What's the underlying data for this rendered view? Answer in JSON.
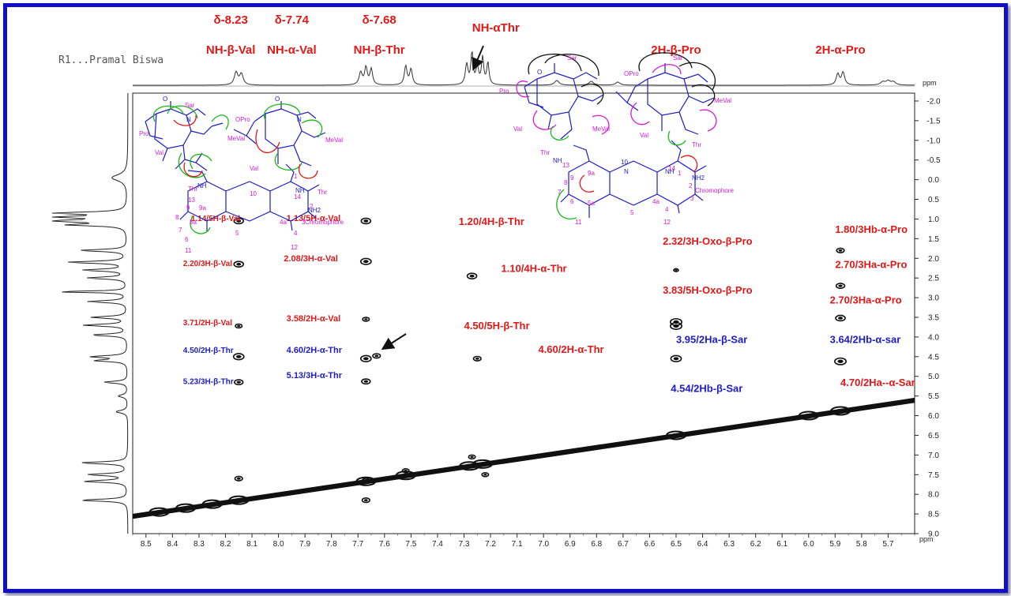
{
  "sample_label": "R1...Pramal Biswa",
  "colors": {
    "frame": "#1010c8",
    "red": "#e01818",
    "blue": "#1c1cc8",
    "magenta": "#d81ad8",
    "green": "#18b818",
    "ink": "#111111"
  },
  "top_labels": [
    {
      "key": "d823",
      "text": "δ-8.23",
      "ppm": 8.18,
      "row": 1
    },
    {
      "key": "d774",
      "text": "δ-7.74",
      "ppm": 7.95,
      "row": 1
    },
    {
      "key": "d768",
      "text": "δ-7.68",
      "ppm": 7.62,
      "row": 1
    },
    {
      "key": "nhbv",
      "text": "NH-β-Val",
      "ppm": 8.18,
      "row": 2
    },
    {
      "key": "nhav",
      "text": "NH-α-Val",
      "ppm": 7.95,
      "row": 2
    },
    {
      "key": "nhbt",
      "text": "NH-β-Thr",
      "ppm": 7.62,
      "row": 2
    },
    {
      "key": "nhat",
      "text": "NH-αThr",
      "ppm": 7.18,
      "row": 1.5
    },
    {
      "key": "bpro",
      "text": "2H-β-Pro",
      "ppm": 6.5,
      "row": 2
    },
    {
      "key": "apro",
      "text": "2H-α-Pro",
      "ppm": 5.88,
      "row": 2
    }
  ],
  "chart_data": {
    "type": "scatter",
    "title": "",
    "xlabel": "ppm",
    "ylabel": "ppm",
    "x_reversed": true,
    "xlim": [
      8.55,
      5.6
    ],
    "ylim": [
      -2.2,
      9.0
    ],
    "x_ticks": [
      8.5,
      8.4,
      8.3,
      8.2,
      8.1,
      8.0,
      7.9,
      7.8,
      7.7,
      7.6,
      7.5,
      7.4,
      7.3,
      7.2,
      7.1,
      7.0,
      6.9,
      6.8,
      6.7,
      6.6,
      6.5,
      6.4,
      6.3,
      6.2,
      6.1,
      6.0,
      5.9,
      5.8,
      5.7
    ],
    "y_ticks": [
      -2.0,
      -1.5,
      -1.0,
      -0.5,
      0.0,
      0.5,
      1.0,
      1.5,
      2.0,
      2.5,
      3.0,
      3.5,
      4.0,
      4.5,
      5.0,
      5.5,
      6.0,
      6.5,
      7.0,
      7.5,
      8.0,
      8.5,
      9.0
    ],
    "cross_peaks": [
      {
        "x": 8.15,
        "y": 1.05,
        "s": 1.0
      },
      {
        "x": 8.15,
        "y": 2.15,
        "s": 1.0
      },
      {
        "x": 8.15,
        "y": 3.72,
        "s": 0.7
      },
      {
        "x": 8.15,
        "y": 4.5,
        "s": 1.1
      },
      {
        "x": 8.15,
        "y": 5.15,
        "s": 0.9
      },
      {
        "x": 7.67,
        "y": 1.05,
        "s": 1.0
      },
      {
        "x": 7.67,
        "y": 2.08,
        "s": 1.1
      },
      {
        "x": 7.67,
        "y": 3.55,
        "s": 0.7
      },
      {
        "x": 7.67,
        "y": 4.55,
        "s": 1.1
      },
      {
        "x": 7.63,
        "y": 4.48,
        "s": 0.8
      },
      {
        "x": 7.67,
        "y": 5.13,
        "s": 0.9
      },
      {
        "x": 7.27,
        "y": 2.45,
        "s": 1.0
      },
      {
        "x": 7.25,
        "y": 4.55,
        "s": 0.8
      },
      {
        "x": 6.5,
        "y": 2.3,
        "s": 0.5
      },
      {
        "x": 6.5,
        "y": 3.62,
        "s": 1.2
      },
      {
        "x": 6.5,
        "y": 3.72,
        "s": 1.2
      },
      {
        "x": 6.5,
        "y": 4.55,
        "s": 1.1
      },
      {
        "x": 5.88,
        "y": 1.8,
        "s": 0.8
      },
      {
        "x": 5.88,
        "y": 2.7,
        "s": 0.9
      },
      {
        "x": 5.88,
        "y": 3.52,
        "s": 1.0
      },
      {
        "x": 5.88,
        "y": 4.62,
        "s": 1.2
      },
      {
        "x": 8.15,
        "y": 7.6,
        "s": 0.8
      },
      {
        "x": 7.67,
        "y": 7.65,
        "s": 0.8
      },
      {
        "x": 7.67,
        "y": 8.15,
        "s": 0.8
      },
      {
        "x": 7.27,
        "y": 7.05,
        "s": 0.7
      },
      {
        "x": 7.22,
        "y": 7.5,
        "s": 0.7
      },
      {
        "x": 7.52,
        "y": 7.4,
        "s": 0.7
      }
    ],
    "annotations": [
      {
        "text": "1.14/5H-β-Val",
        "ppm": 8.33,
        "y": 1.05,
        "color": "red",
        "size": 10
      },
      {
        "text": "1.13/5H-α-Val",
        "ppm": 7.97,
        "y": 1.05,
        "color": "red",
        "size": 11
      },
      {
        "text": "1.20/4H-β-Thr",
        "ppm": 7.32,
        "y": 1.15,
        "color": "red",
        "size": 13
      },
      {
        "text": "2.20/3H-β-Val",
        "ppm": 8.36,
        "y": 2.2,
        "color": "red",
        "size": 10
      },
      {
        "text": "2.08/3H-α-Val",
        "ppm": 7.98,
        "y": 2.08,
        "color": "red",
        "size": 11
      },
      {
        "text": "1.10/4H-α-Thr",
        "ppm": 7.16,
        "y": 2.35,
        "color": "red",
        "size": 13
      },
      {
        "text": "3.71/2H-β-Val",
        "ppm": 8.36,
        "y": 3.7,
        "color": "red",
        "size": 10
      },
      {
        "text": "3.58/2H-α-Val",
        "ppm": 7.97,
        "y": 3.6,
        "color": "red",
        "size": 11
      },
      {
        "text": "4.50/5H-β-Thr",
        "ppm": 7.3,
        "y": 3.8,
        "color": "red",
        "size": 13
      },
      {
        "text": "4.50/2H-β-Thr",
        "ppm": 8.36,
        "y": 4.4,
        "color": "blue",
        "size": 10
      },
      {
        "text": "4.60/2H-α-Thr",
        "ppm": 7.97,
        "y": 4.4,
        "color": "blue",
        "size": 11
      },
      {
        "text": "4.60/2H-α-Thr",
        "ppm": 7.02,
        "y": 4.4,
        "color": "red",
        "size": 13
      },
      {
        "text": "5.23/3H-β-Thr",
        "ppm": 8.36,
        "y": 5.2,
        "color": "blue",
        "size": 10
      },
      {
        "text": "5.13/3H-α-Thr",
        "ppm": 7.97,
        "y": 5.05,
        "color": "blue",
        "size": 11
      },
      {
        "text": "2.32/3H-Oxo-β-Pro",
        "ppm": 6.55,
        "y": 1.65,
        "color": "red",
        "size": 13
      },
      {
        "text": "3.83/5H-Oxo-β-Pro",
        "ppm": 6.55,
        "y": 2.9,
        "color": "red",
        "size": 13
      },
      {
        "text": "3.95/2Ha-β-Sar",
        "ppm": 6.5,
        "y": 4.15,
        "color": "blue",
        "size": 13
      },
      {
        "text": "4.54/2Hb-β-Sar",
        "ppm": 6.52,
        "y": 5.4,
        "color": "blue",
        "size": 13
      },
      {
        "text": "1.80/3Hb-α-Pro",
        "ppm": 5.9,
        "y": 1.35,
        "color": "red",
        "size": 13
      },
      {
        "text": "2.70/3Ha-α-Pro",
        "ppm": 5.9,
        "y": 2.25,
        "color": "red",
        "size": 13
      },
      {
        "text": "2.70/3Ha-α-Pro",
        "ppm": 5.92,
        "y": 3.15,
        "color": "red",
        "size": 13
      },
      {
        "text": "3.64/2Hb-α-sar",
        "ppm": 5.92,
        "y": 4.15,
        "color": "blue",
        "size": 13
      },
      {
        "text": "4.70/2Ha--α-Sar",
        "ppm": 5.88,
        "y": 5.25,
        "color": "red",
        "size": 13
      }
    ]
  },
  "structure_left": {
    "labels": [
      "Sar",
      "Pro",
      "OPro",
      "MeVal",
      "MeVal",
      "Val",
      "Thr",
      "Val",
      "Thr",
      "Chromophore",
      "NH2",
      "NH",
      "NH",
      "O",
      "O",
      "N",
      "N",
      "10",
      "13",
      "14",
      "9",
      "9a",
      "8",
      "8a",
      "7",
      "6",
      "5",
      "4a",
      "4",
      "3",
      "2",
      "1",
      "11",
      "12"
    ]
  },
  "structure_right": {
    "labels": [
      "Sar",
      "Sar",
      "Pro",
      "OPro",
      "MeVal",
      "MeVal",
      "Val",
      "Val",
      "Thr",
      "Thr",
      "Chromophore",
      "NH2",
      "NH",
      "NH",
      "O",
      "N",
      "10",
      "13",
      "14",
      "9",
      "9a",
      "8",
      "7",
      "6",
      "5a",
      "5",
      "4a",
      "4",
      "3",
      "2",
      "1",
      "11",
      "12"
    ]
  }
}
